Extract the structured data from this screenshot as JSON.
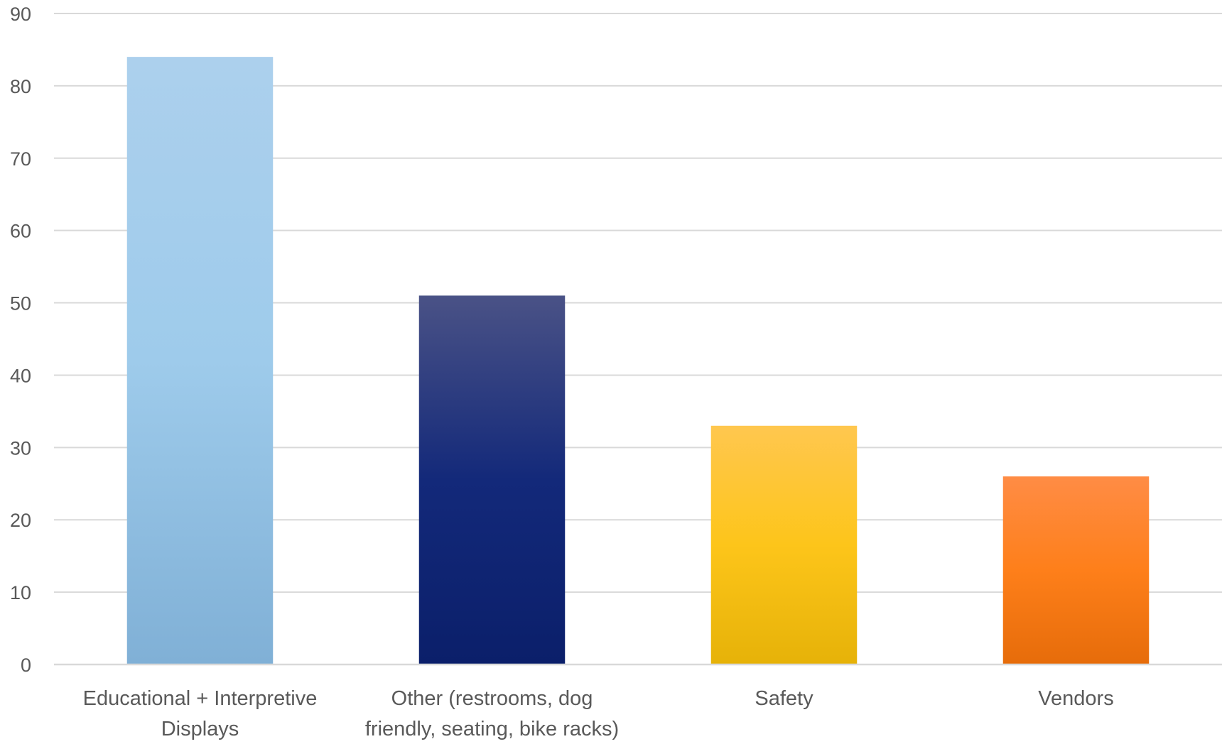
{
  "chart_data": {
    "type": "bar",
    "categories": [
      [
        "Educational + Interpretive",
        "Displays"
      ],
      [
        "Other (restrooms, dog",
        "friendly, seating, bike racks)"
      ],
      [
        "Safety"
      ],
      [
        "Vendors"
      ]
    ],
    "values": [
      84,
      51,
      33,
      26
    ],
    "ylim": [
      0,
      90
    ],
    "yticks": [
      "0",
      "10",
      "20",
      "30",
      "40",
      "50",
      "60",
      "70",
      "80",
      "90"
    ],
    "grid": true,
    "legend": "none",
    "bar_colors": [
      [
        "#acd0ed",
        "#9ecbeb",
        "#80b0d6"
      ],
      [
        "#4a5286",
        "#13297a",
        "#0b1f6a"
      ],
      [
        "#ffc74f",
        "#fdc51a",
        "#e6b208"
      ],
      [
        "#ff8c45",
        "#fe7f1a",
        "#e66c0a"
      ]
    ]
  }
}
